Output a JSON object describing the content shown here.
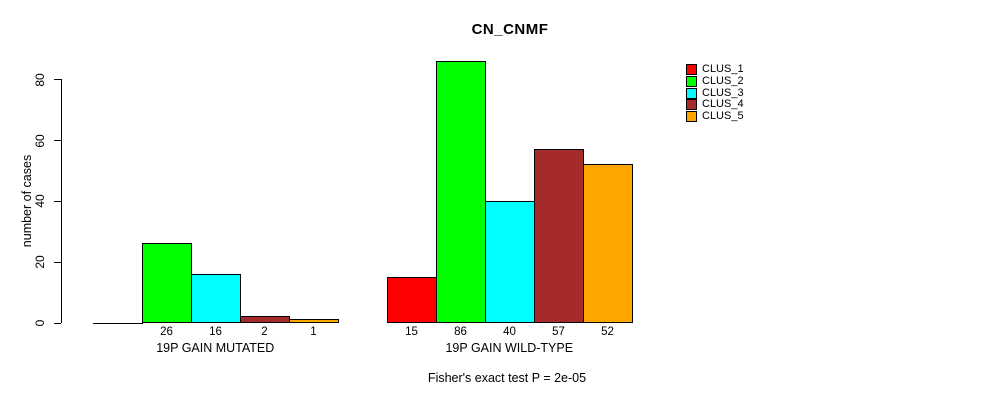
{
  "title": "CN_CNMF",
  "y_axis_label": "number of cases",
  "footnote": "Fisher's exact test P = 2e-05",
  "chart_data": {
    "type": "bar",
    "title": "CN_CNMF",
    "xlabel": "",
    "ylabel": "number of cases",
    "ylim": [
      0,
      86
    ],
    "yticks": [
      0,
      20,
      40,
      60,
      80
    ],
    "grid": false,
    "legend_position": "right",
    "categories": [
      "19P GAIN MUTATED",
      "19P GAIN WILD-TYPE"
    ],
    "series": [
      {
        "name": "CLUS_1",
        "color": "#ff0000",
        "values": [
          0,
          15
        ]
      },
      {
        "name": "CLUS_2",
        "color": "#00ff00",
        "values": [
          26,
          86
        ]
      },
      {
        "name": "CLUS_3",
        "color": "#00ffff",
        "values": [
          16,
          40
        ]
      },
      {
        "name": "CLUS_4",
        "color": "#a52a2a",
        "values": [
          2,
          57
        ]
      },
      {
        "name": "CLUS_5",
        "color": "#ffa500",
        "values": [
          1,
          52
        ]
      }
    ],
    "bar_value_labels": [
      [
        "",
        "26",
        "16",
        "2",
        "1"
      ],
      [
        "15",
        "86",
        "40",
        "57",
        "52"
      ]
    ],
    "footnote": "Fisher's exact test P = 2e-05"
  }
}
